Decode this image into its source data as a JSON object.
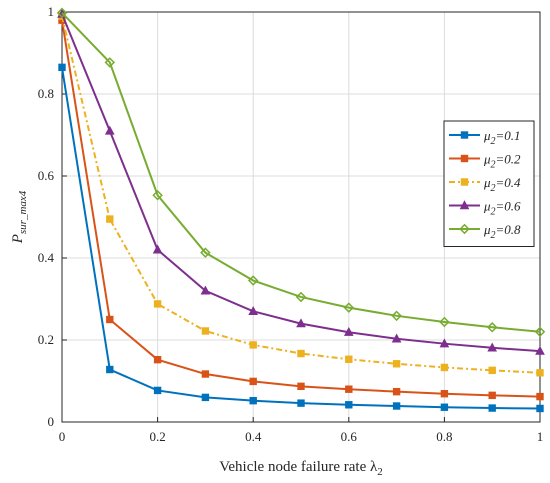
{
  "chart_data": {
    "type": "line",
    "title": "",
    "xlabel": "Vehicle node failure rate λ",
    "xlabel_sub": "2",
    "ylabel": "P",
    "ylabel_sub": "sur_max4",
    "xlim": [
      0,
      1
    ],
    "ylim": [
      0,
      1
    ],
    "xticks": [
      "0",
      "0.2",
      "0.4",
      "0.6",
      "0.8",
      "1"
    ],
    "yticks": [
      "0",
      "0.2",
      "0.4",
      "0.6",
      "0.8",
      "1"
    ],
    "grid": true,
    "legend_position": "right",
    "x": [
      0,
      0.1,
      0.2,
      0.3,
      0.4,
      0.5,
      0.6,
      0.7,
      0.8,
      0.9,
      1.0
    ],
    "series": [
      {
        "name": "μ",
        "name_sub": "2",
        "name_suffix": "=0.1",
        "color": "#0072BD",
        "marker": "square",
        "dash": "solid",
        "values": [
          0.865,
          0.128,
          0.077,
          0.06,
          0.052,
          0.046,
          0.042,
          0.039,
          0.036,
          0.034,
          0.033
        ]
      },
      {
        "name": "μ",
        "name_sub": "2",
        "name_suffix": "=0.2",
        "color": "#D95319",
        "marker": "square",
        "dash": "solid",
        "values": [
          0.98,
          0.25,
          0.152,
          0.117,
          0.099,
          0.087,
          0.08,
          0.074,
          0.069,
          0.065,
          0.062
        ]
      },
      {
        "name": "μ",
        "name_sub": "2",
        "name_suffix": "=0.4",
        "color": "#EDB120",
        "marker": "square",
        "dash": "dashdot",
        "values": [
          0.99,
          0.495,
          0.288,
          0.222,
          0.188,
          0.167,
          0.153,
          0.142,
          0.133,
          0.126,
          0.12
        ]
      },
      {
        "name": "μ",
        "name_sub": "2",
        "name_suffix": "=0.6",
        "color": "#7E2F8E",
        "marker": "triangle",
        "dash": "solid",
        "values": [
          0.995,
          0.71,
          0.42,
          0.32,
          0.27,
          0.24,
          0.219,
          0.203,
          0.191,
          0.181,
          0.173
        ]
      },
      {
        "name": "μ",
        "name_sub": "2",
        "name_suffix": "=0.8",
        "color": "#77AC30",
        "marker": "diamond",
        "dash": "solid",
        "values": [
          0.998,
          0.877,
          0.553,
          0.413,
          0.345,
          0.305,
          0.279,
          0.259,
          0.244,
          0.231,
          0.22
        ]
      }
    ]
  }
}
